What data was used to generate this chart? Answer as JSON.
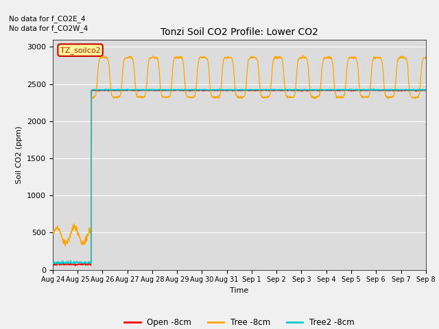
{
  "title": "Tonzi Soil CO2 Profile: Lower CO2",
  "xlabel": "Time",
  "ylabel": "Soil CO2 (ppm)",
  "ylim": [
    0,
    3100
  ],
  "yticks": [
    0,
    500,
    1000,
    1500,
    2000,
    2500,
    3000
  ],
  "annotation_lines": [
    "No data for f_CO2E_4",
    "No data for f_CO2W_4"
  ],
  "legend_labels": [
    "Open -8cm",
    "Tree -8cm",
    "Tree2 -8cm"
  ],
  "legend_colors": [
    "#ff0000",
    "#ffa500",
    "#00cccc"
  ],
  "cursor_label": "TZ_soilco2",
  "cursor_color": "#cc0000",
  "cursor_bg": "#ffff99",
  "fig_bg": "#f0f0f0",
  "plot_bg": "#dcdcdc",
  "open_baseline": 2415,
  "tree2_baseline": 2422,
  "transition_day": 1.55,
  "xtick_labels": [
    "Aug 24",
    "Aug 25",
    "Aug 26",
    "Aug 27",
    "Aug 28",
    "Aug 29",
    "Aug 30",
    "Aug 31",
    "Sep 1",
    "Sep 2",
    "Sep 3",
    "Sep 4",
    "Sep 5",
    "Sep 6",
    "Sep 7",
    "Sep 8"
  ]
}
